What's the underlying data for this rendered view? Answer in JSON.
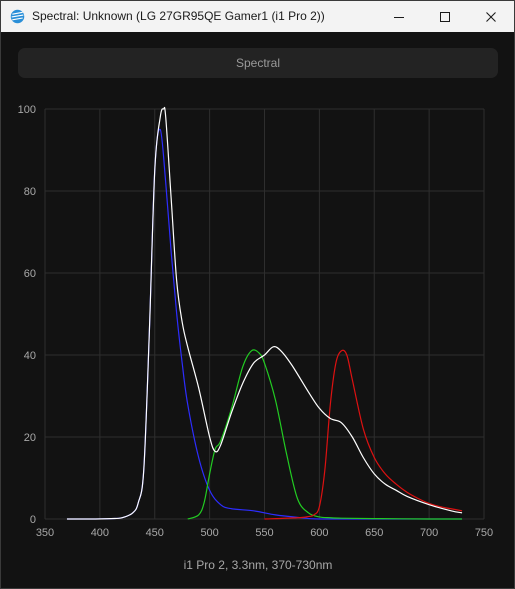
{
  "window": {
    "title": "Spectral: Unknown (LG 27GR95QE Gamer1 (i1 Pro 2))",
    "icon": "spectral-app-icon",
    "controls": {
      "minimize_icon": "minimize-icon",
      "maximize_icon": "maximize-icon",
      "close_icon": "close-icon"
    }
  },
  "toolbar": {
    "mode_label": "Spectral"
  },
  "colors": {
    "white_series": "#ffffff",
    "blue_series": "#2d2dff",
    "green_series": "#22cc22",
    "red_series": "#dd1111",
    "grid": "#2e2e2e",
    "background": "#121212"
  },
  "chart_data": {
    "type": "line",
    "title": "",
    "xlabel": "i1 Pro 2, 3.3nm, 370-730nm",
    "ylabel": "",
    "xlim": [
      350,
      750
    ],
    "ylim": [
      0,
      100
    ],
    "x_ticks": [
      350,
      400,
      450,
      500,
      550,
      600,
      650,
      700,
      750
    ],
    "y_ticks": [
      0,
      20,
      40,
      60,
      80,
      100
    ],
    "grid": true,
    "legend": "none",
    "series": [
      {
        "color": "#ffffff",
        "x": [
          370,
          390,
          410,
          420,
          430,
          435,
          440,
          445,
          450,
          455,
          458,
          460,
          465,
          470,
          475,
          480,
          490,
          500,
          505,
          510,
          520,
          530,
          540,
          550,
          558,
          565,
          575,
          590,
          600,
          610,
          620,
          630,
          640,
          650,
          660,
          670,
          680,
          700,
          720,
          730
        ],
        "y": [
          0,
          0,
          0.1,
          0.3,
          1.5,
          4,
          12,
          45,
          85,
          98,
          100,
          98,
          78,
          58,
          48,
          42,
          32,
          20,
          16.5,
          18,
          26,
          33,
          38,
          40,
          42,
          41,
          37.5,
          31,
          27,
          24.5,
          23.5,
          20,
          15,
          11,
          8.5,
          7,
          5.5,
          3.5,
          2,
          1.5
        ]
      },
      {
        "color": "#2d2dff",
        "x": [
          370,
          390,
          410,
          420,
          430,
          435,
          440,
          445,
          450,
          455,
          460,
          465,
          470,
          475,
          480,
          490,
          500,
          510,
          520,
          540,
          560,
          580,
          600,
          650,
          730
        ],
        "y": [
          0,
          0,
          0.1,
          0.3,
          1.5,
          4,
          12,
          45,
          85,
          95,
          82,
          65,
          50,
          38,
          28,
          15,
          7,
          3.5,
          2.5,
          2,
          1,
          0.4,
          0,
          0,
          0
        ]
      },
      {
        "color": "#22cc22",
        "x": [
          480,
          490,
          495,
          500,
          505,
          510,
          520,
          530,
          538,
          545,
          550,
          560,
          570,
          580,
          590,
          600,
          610,
          620,
          650,
          700,
          730
        ],
        "y": [
          0,
          1,
          4,
          11,
          17,
          19,
          27,
          37,
          41,
          40.5,
          38,
          29,
          16,
          5,
          1.5,
          0.5,
          0.3,
          0.2,
          0.1,
          0,
          0
        ]
      },
      {
        "color": "#dd1111",
        "x": [
          550,
          580,
          590,
          595,
          600,
          605,
          610,
          615,
          620,
          625,
          630,
          640,
          650,
          660,
          670,
          680,
          690,
          700,
          710,
          720,
          730
        ],
        "y": [
          0,
          0.3,
          0.6,
          1,
          3,
          12,
          28,
          38,
          41,
          40,
          34,
          22,
          15,
          11,
          8.5,
          6.5,
          5,
          3.8,
          3,
          2.5,
          2
        ]
      }
    ]
  }
}
